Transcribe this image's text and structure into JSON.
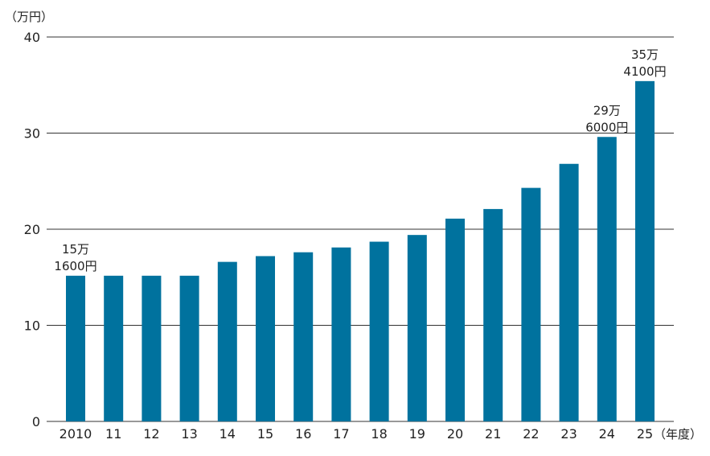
{
  "chart_data": {
    "type": "bar",
    "title": "",
    "ylabel": "（万円）",
    "xlabel": "（年度）",
    "ylim": [
      0,
      40
    ],
    "yticks": [
      0,
      10,
      20,
      30,
      40
    ],
    "grid": true,
    "bar_color": "#00729E",
    "grid_color": "#333333",
    "categories": [
      "2010",
      "11",
      "12",
      "13",
      "14",
      "15",
      "16",
      "17",
      "18",
      "19",
      "20",
      "21",
      "22",
      "23",
      "24",
      "25"
    ],
    "values": [
      15.16,
      15.16,
      15.16,
      15.16,
      16.6,
      17.2,
      17.6,
      18.1,
      18.7,
      19.4,
      21.1,
      22.1,
      24.3,
      26.8,
      29.6,
      35.41
    ],
    "annotations": [
      {
        "index": 0,
        "lines": [
          "15万",
          "1600円"
        ]
      },
      {
        "index": 14,
        "lines": [
          "29万",
          "6000円"
        ]
      },
      {
        "index": 15,
        "lines": [
          "35万",
          "4100円"
        ]
      }
    ]
  }
}
